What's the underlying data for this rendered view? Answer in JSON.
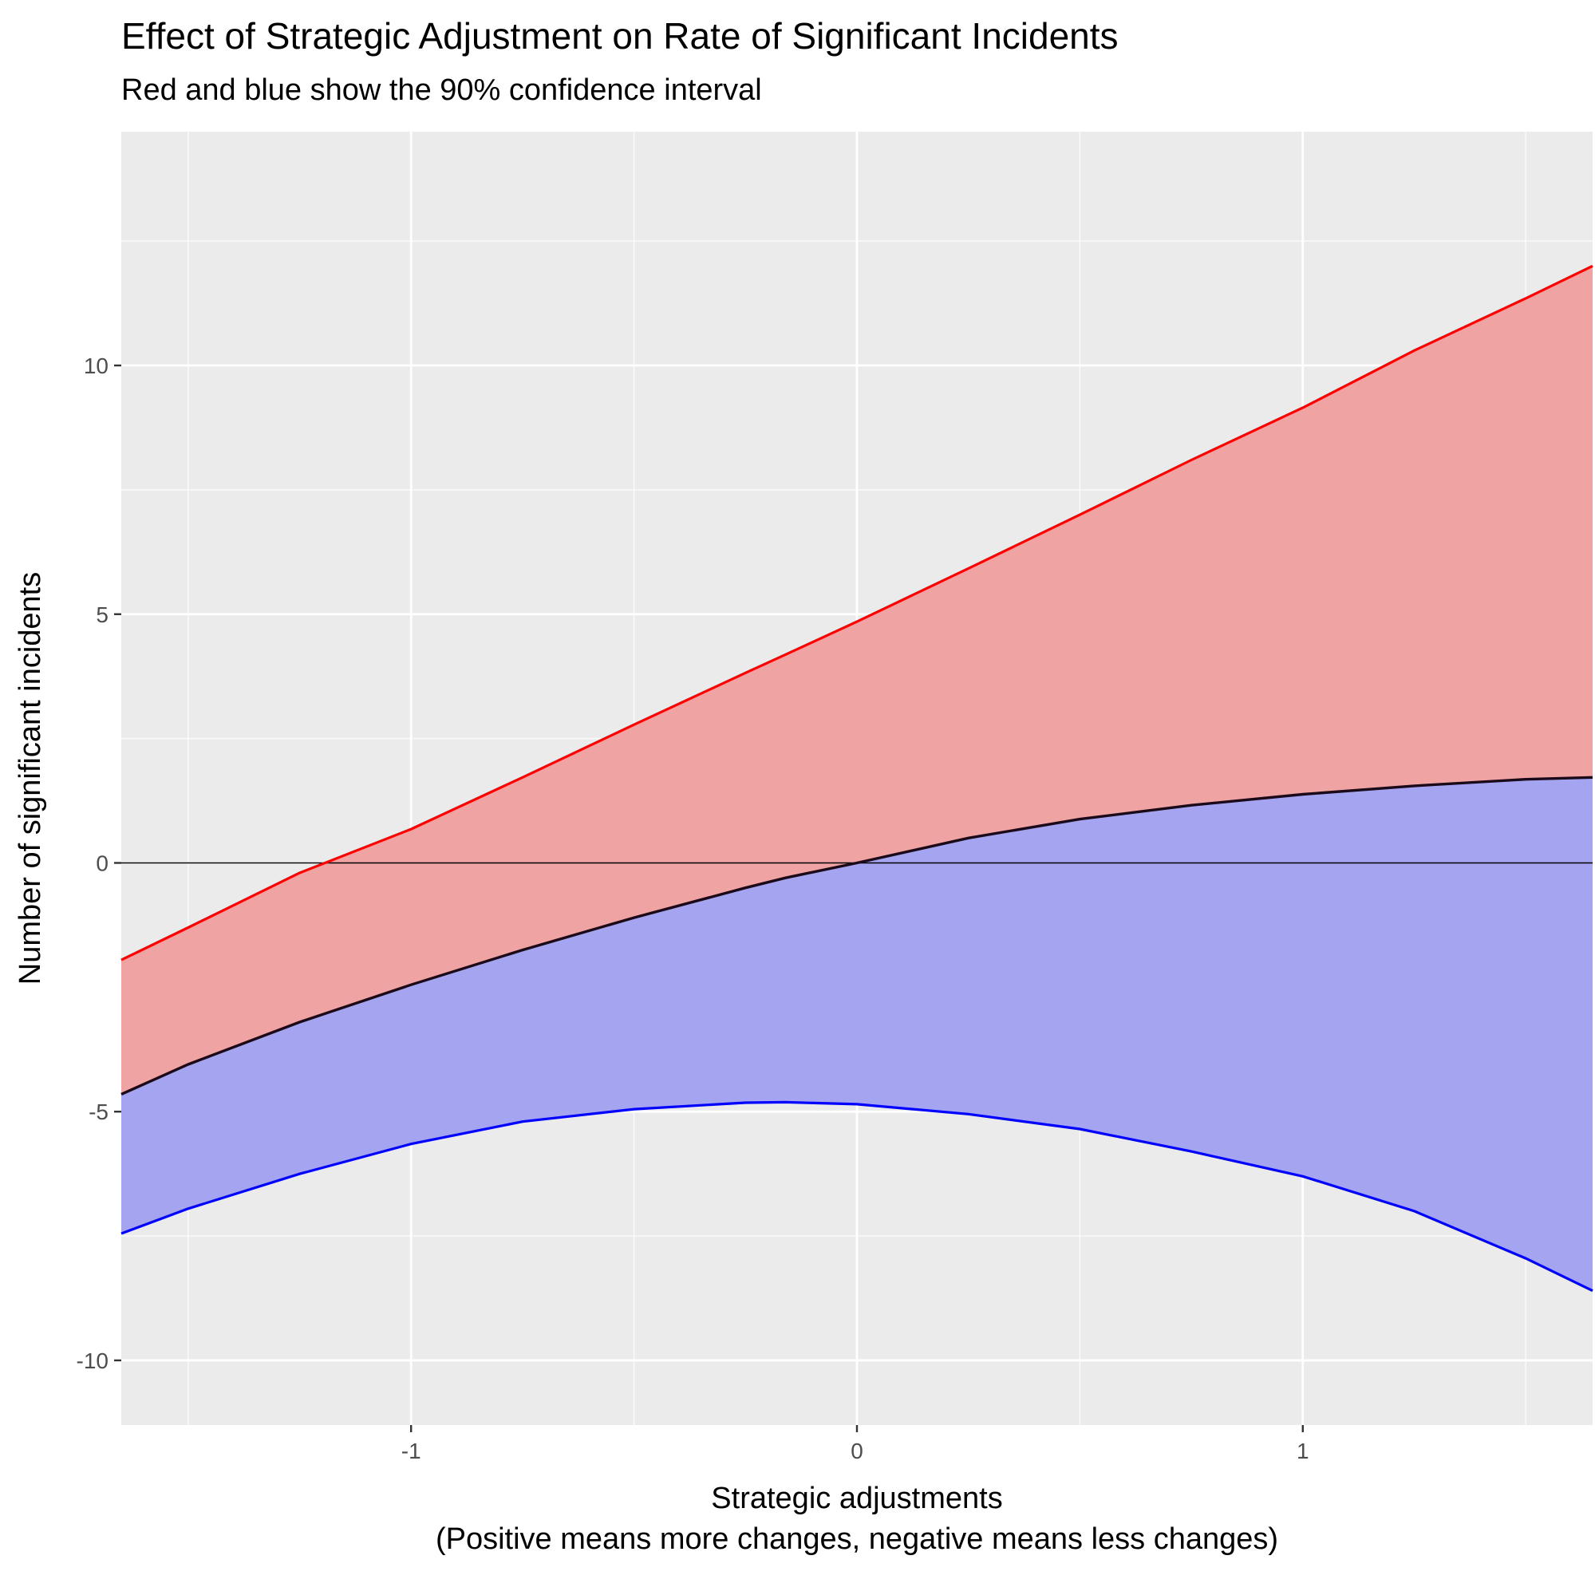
{
  "chart_data": {
    "type": "area",
    "title": "Effect of Strategic Adjustment on Rate of Significant Incidents",
    "subtitle": "Red and blue show the 90% confidence interval",
    "xlabel": "Strategic adjustments",
    "xlabel_line2": "(Positive means more changes, negative means less changes)",
    "ylabel": "Number of significant incidents",
    "xlim": [
      -1.65,
      1.65
    ],
    "ylim": [
      -11.3,
      14.7
    ],
    "x_ticks": [
      -1,
      0,
      1
    ],
    "x_tick_labels": [
      "-1",
      "0",
      "1"
    ],
    "y_ticks": [
      -10,
      -5,
      0,
      5,
      10
    ],
    "y_tick_labels": [
      "-10",
      "-5",
      "0",
      "5",
      "10"
    ],
    "grid": true,
    "reference_line_y": 0,
    "x": [
      -1.65,
      -1.5,
      -1.25,
      -1.0,
      -0.75,
      -0.5,
      -0.25,
      -0.16,
      0.0,
      0.25,
      0.5,
      0.75,
      1.0,
      1.25,
      1.5,
      1.65
    ],
    "series": [
      {
        "role": "upper_bound",
        "color": "#ff0000",
        "fill": "#f0a3a3",
        "values": [
          -1.95,
          -1.3,
          -0.2,
          0.68,
          1.72,
          2.78,
          3.82,
          4.19,
          4.85,
          5.92,
          7.0,
          8.1,
          9.15,
          10.3,
          11.35,
          12.0
        ]
      },
      {
        "role": "estimate",
        "color": "#1a0a1a",
        "values": [
          -4.65,
          -4.05,
          -3.2,
          -2.45,
          -1.75,
          -1.1,
          -0.5,
          -0.3,
          0.0,
          0.5,
          0.88,
          1.16,
          1.38,
          1.55,
          1.68,
          1.72
        ]
      },
      {
        "role": "lower_bound",
        "color": "#0000ff",
        "fill": "#a4a4f0",
        "values": [
          -7.45,
          -6.95,
          -6.25,
          -5.65,
          -5.2,
          -4.95,
          -4.82,
          -4.81,
          -4.85,
          -5.05,
          -5.35,
          -5.8,
          -6.3,
          -7.0,
          -7.95,
          -8.6
        ]
      }
    ]
  }
}
